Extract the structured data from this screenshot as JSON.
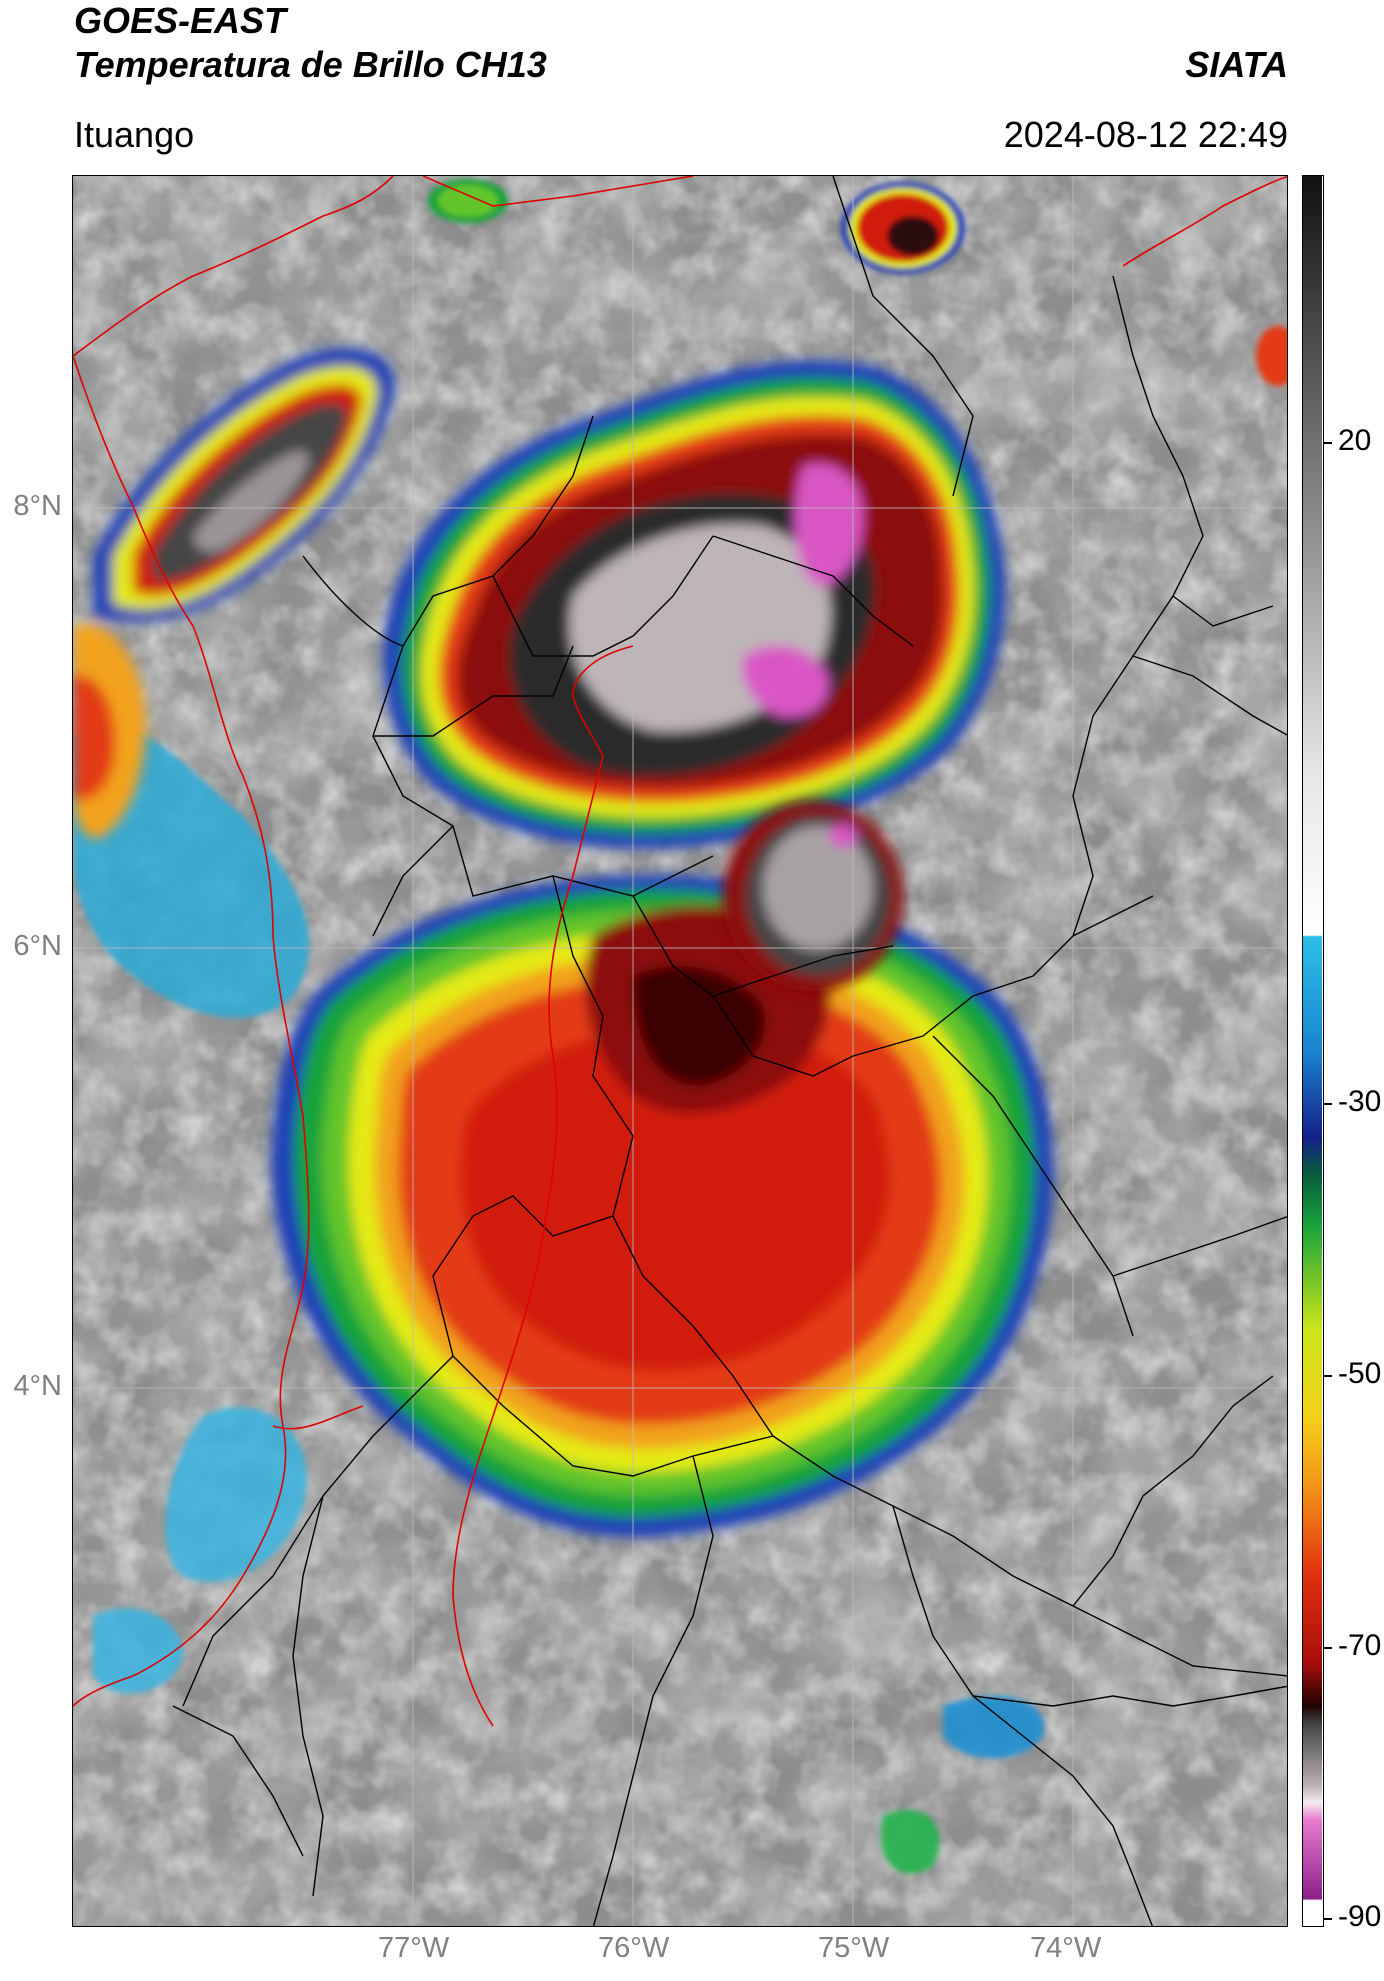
{
  "header": {
    "title_line1": "GOES-EAST",
    "title_line2": "Temperatura de Brillo CH13",
    "org": "SIATA",
    "location": "Ituango",
    "datetime": "2024-08-12 22:49"
  },
  "map": {
    "lat_labels": [
      "8°N",
      "6°N",
      "4°N"
    ],
    "lon_labels": [
      "77°W",
      "76°W",
      "75°W",
      "74°W"
    ],
    "colors": {
      "coast": "#e00000",
      "borders": "#000000",
      "grid": "#bfbfbf"
    }
  },
  "colorbar": {
    "labels": [
      "20",
      "-30",
      "-50",
      "-70",
      "-90"
    ],
    "values": [
      20,
      -30,
      -50,
      -70,
      -90
    ],
    "range": [
      -92,
      37
    ]
  }
}
